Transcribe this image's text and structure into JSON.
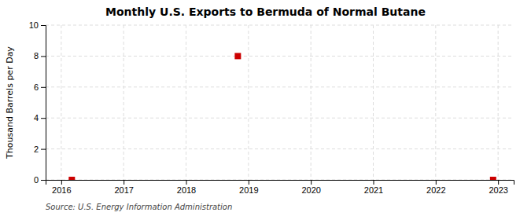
{
  "chart_data": {
    "type": "scatter",
    "title": "Monthly U.S. Exports to Bermuda of Normal Butane",
    "ylabel": "Thousand Barrels per Day",
    "source": "Source: U.S. Energy Information Administration",
    "x": [
      2016.17,
      2018.83,
      2022.92
    ],
    "values": [
      0.0,
      8.0,
      0.0
    ],
    "color": "#cc0000",
    "marker": "square",
    "xlim": [
      2015.75,
      2023.25
    ],
    "ylim": [
      0,
      10
    ],
    "xticks": [
      2016,
      2017,
      2018,
      2019,
      2020,
      2021,
      2022,
      2023
    ],
    "yticks": [
      0,
      2,
      4,
      6,
      8,
      10
    ],
    "grid": true
  }
}
